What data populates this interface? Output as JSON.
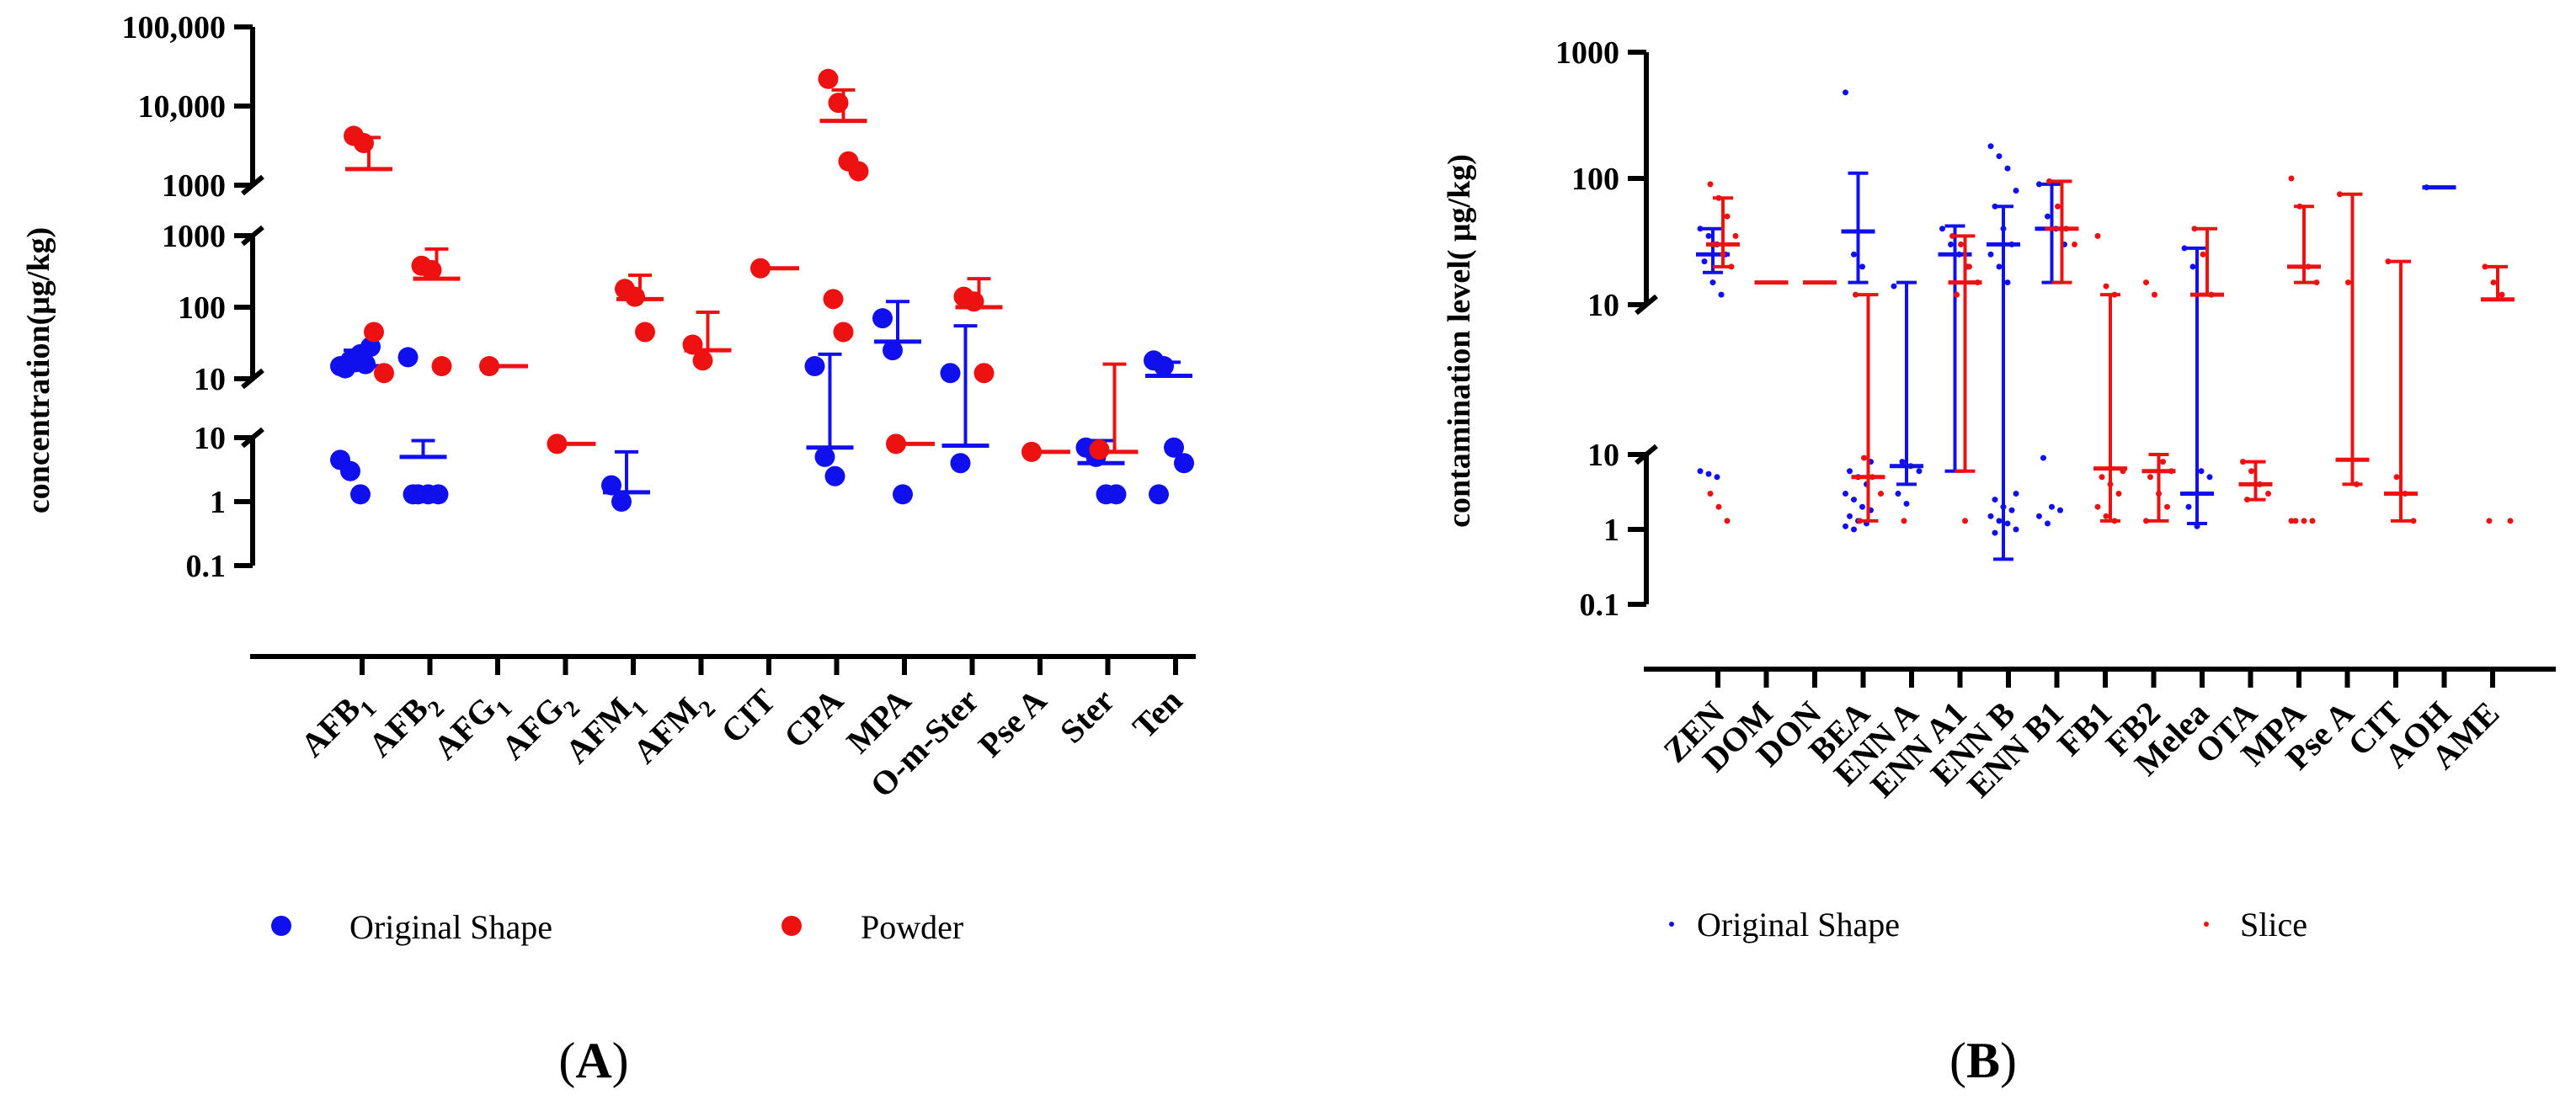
{
  "colors": {
    "original": "#1010ee",
    "second": "#ee1111",
    "axis": "#000000"
  },
  "chart_data": [
    {
      "type": "scatter",
      "panel": "A",
      "ylabel": "concentration(μg/kg)",
      "yscale": "log-broken",
      "segments": [
        {
          "lo": 0.1,
          "hi": 10,
          "ticks": [
            "0.1",
            "1",
            "10"
          ]
        },
        {
          "lo": 10,
          "hi": 1000,
          "ticks": [
            "10",
            "100",
            "1000"
          ]
        },
        {
          "lo": 1000,
          "hi": 100000,
          "ticks": [
            "1000",
            "10,000",
            "100,000"
          ]
        }
      ],
      "categories": [
        {
          "base": "AFB",
          "sub": "1"
        },
        {
          "base": "AFB",
          "sub": "2"
        },
        {
          "base": "AFG",
          "sub": "1"
        },
        {
          "base": "AFG",
          "sub": "2"
        },
        {
          "base": "AFM",
          "sub": "1"
        },
        {
          "base": "AFM",
          "sub": "2"
        },
        {
          "base": "CIT",
          "sub": ""
        },
        {
          "base": "CPA",
          "sub": ""
        },
        {
          "base": "MPA",
          "sub": ""
        },
        {
          "base": "O-m-Ster",
          "sub": ""
        },
        {
          "base": "Pse A",
          "sub": ""
        },
        {
          "base": "Ster",
          "sub": ""
        },
        {
          "base": "Ten",
          "sub": ""
        }
      ],
      "series": [
        {
          "name": "Original Shape",
          "groups": [
            {
              "cat": 0,
              "mean": 15,
              "err": 25,
              "points": [
                15,
                18,
                22,
                28,
                14,
                17,
                16,
                4.5,
                3,
                1.3
              ]
            },
            {
              "cat": 1,
              "mean": 5,
              "err": 9,
              "points": [
                20,
                1.3,
                1.3,
                1.3,
                1.3
              ]
            },
            {
              "cat": 4,
              "mean": 1.4,
              "err": 6,
              "points": [
                1.8,
                1.0
              ]
            },
            {
              "cat": 7,
              "mean": 7,
              "err": 22,
              "points": [
                15,
                5,
                2.5
              ]
            },
            {
              "cat": 8,
              "mean": 33,
              "err": 120,
              "points": [
                70,
                25,
                1.3
              ]
            },
            {
              "cat": 9,
              "mean": 7.5,
              "err": 55,
              "points": [
                12,
                4
              ]
            },
            {
              "cat": 11,
              "mean": 4,
              "err": 9,
              "points": [
                7,
                5,
                1.3,
                1.3
              ]
            },
            {
              "cat": 12,
              "mean": 11,
              "err": 17,
              "points": [
                18,
                15,
                7,
                4,
                1.3
              ]
            }
          ]
        },
        {
          "name": "Powder",
          "groups": [
            {
              "cat": 0,
              "mean": 1600,
              "err": 4000,
              "points": [
                4200,
                3400,
                45,
                12
              ]
            },
            {
              "cat": 1,
              "mean": 250,
              "err": 650,
              "points": [
                380,
                330,
                15
              ]
            },
            {
              "cat": 2,
              "mean": 15,
              "err": null,
              "points": [
                15
              ]
            },
            {
              "cat": 3,
              "mean": 8,
              "err": null,
              "points": [
                8
              ]
            },
            {
              "cat": 4,
              "mean": 130,
              "err": 280,
              "points": [
                180,
                140,
                45
              ]
            },
            {
              "cat": 5,
              "mean": 25,
              "err": 85,
              "points": [
                30,
                18
              ]
            },
            {
              "cat": 6,
              "mean": 350,
              "err": null,
              "points": [
                350
              ]
            },
            {
              "cat": 7,
              "mean": 6500,
              "err": 16000,
              "points": [
                22000,
                11000,
                2000,
                1500,
                130,
                45
              ]
            },
            {
              "cat": 8,
              "mean": 8,
              "err": null,
              "points": [
                8
              ]
            },
            {
              "cat": 9,
              "mean": 100,
              "err": 250,
              "points": [
                140,
                120,
                12
              ]
            },
            {
              "cat": 10,
              "mean": 6,
              "err": null,
              "points": [
                6
              ]
            },
            {
              "cat": 11,
              "mean": 6,
              "err": 16,
              "points": [
                6.5
              ]
            }
          ]
        }
      ],
      "legend": [
        "Original Shape",
        "Powder"
      ]
    },
    {
      "type": "scatter",
      "panel": "B",
      "ylabel": "contamination level( μg/kg)",
      "yscale": "log-broken",
      "segments": [
        {
          "lo": 0.1,
          "hi": 10,
          "ticks": [
            "0.1",
            "1",
            "10"
          ]
        },
        {
          "lo": 10,
          "hi": 1000,
          "ticks": [
            "10",
            "100",
            "1000"
          ]
        }
      ],
      "categories": [
        "ZEN",
        "DOM",
        "DON",
        "BEA",
        "ENN A",
        "ENN A1",
        "ENN B",
        "ENN B1",
        "FB1",
        "FB2",
        "Melea",
        "OTA",
        "MPA",
        "Pse A",
        "CIT",
        "AOH",
        "AME"
      ],
      "series": [
        {
          "name": "Original Shape",
          "groups": [
            {
              "cat": 0,
              "mean": 25,
              "lo": 18,
              "hi": 40,
              "points": [
                40,
                35,
                30,
                25,
                22,
                15,
                12,
                6,
                5.5,
                5
              ]
            },
            {
              "cat": 3,
              "mean": 38,
              "lo": 15,
              "hi": 110,
              "points": [
                480,
                25,
                20,
                8,
                6,
                5,
                4,
                3,
                2.5,
                2,
                1.8,
                1.5,
                1.3,
                1.2,
                1.1,
                1
              ]
            },
            {
              "cat": 4,
              "mean": 7,
              "lo": 4,
              "hi": 15,
              "points": [
                14,
                8,
                7,
                6,
                3,
                2.2
              ]
            },
            {
              "cat": 5,
              "mean": 25,
              "lo": 6,
              "hi": 42,
              "points": [
                40,
                30,
                25,
                20
              ]
            },
            {
              "cat": 6,
              "mean": 30,
              "lo": 0.4,
              "hi": 60,
              "points": [
                180,
                150,
                120,
                80,
                60,
                40,
                30,
                25,
                20,
                15,
                3,
                2.5,
                2,
                1.8,
                1.5,
                1.3,
                1.2,
                1,
                0.9
              ]
            },
            {
              "cat": 7,
              "mean": 40,
              "lo": 15,
              "hi": 90,
              "points": [
                90,
                50,
                40,
                30,
                9,
                2,
                1.8,
                1.5,
                1.2
              ]
            },
            {
              "cat": 10,
              "mean": 3,
              "lo": 1.2,
              "hi": 28,
              "points": [
                28,
                20,
                6,
                5,
                2,
                1.1
              ]
            },
            {
              "cat": 15,
              "mean": 85,
              "lo": 85,
              "hi": 85,
              "points": [
                85
              ]
            }
          ]
        },
        {
          "name": "Slice",
          "groups": [
            {
              "cat": 0,
              "mean": 30,
              "lo": 20,
              "hi": 70,
              "points": [
                90,
                70,
                50,
                35,
                30,
                25,
                20,
                3,
                2,
                1.3
              ]
            },
            {
              "cat": 1,
              "mean": 15,
              "lo": 15,
              "hi": 15,
              "points": []
            },
            {
              "cat": 2,
              "mean": 15,
              "lo": 15,
              "hi": 15,
              "points": []
            },
            {
              "cat": 3,
              "mean": 5,
              "lo": 1.3,
              "hi": 12,
              "points": [
                12,
                9,
                5,
                3,
                1.3
              ]
            },
            {
              "cat": 4,
              "mean": null,
              "lo": null,
              "hi": null,
              "points": [
                1.3
              ]
            },
            {
              "cat": 5,
              "mean": 15,
              "lo": 6,
              "hi": 35,
              "points": [
                35,
                30,
                20,
                15,
                12,
                1.3
              ]
            },
            {
              "cat": 7,
              "mean": 40,
              "lo": 15,
              "hi": 95,
              "points": [
                95,
                60,
                40,
                30
              ]
            },
            {
              "cat": 8,
              "mean": 6.5,
              "lo": 1.3,
              "hi": 12,
              "points": [
                35,
                14,
                12,
                6,
                5,
                4,
                3,
                2,
                1.5,
                1.3
              ]
            },
            {
              "cat": 9,
              "mean": 6,
              "lo": 1.3,
              "hi": 10,
              "points": [
                15,
                12,
                8,
                6,
                5,
                3,
                2,
                1.3
              ]
            },
            {
              "cat": 10,
              "mean": 12,
              "lo": 12,
              "hi": 40,
              "points": [
                40,
                25,
                12
              ]
            },
            {
              "cat": 11,
              "mean": 4,
              "lo": 2.5,
              "hi": 8,
              "points": [
                8,
                6,
                4,
                3,
                2.5
              ]
            },
            {
              "cat": 12,
              "mean": 20,
              "lo": 15,
              "hi": 60,
              "points": [
                100,
                60,
                20,
                15,
                1.3,
                1.3,
                1.3,
                1.3
              ]
            },
            {
              "cat": 13,
              "mean": 8.5,
              "lo": 4,
              "hi": 75,
              "points": [
                75,
                15,
                4
              ]
            },
            {
              "cat": 14,
              "mean": 3,
              "lo": 1.3,
              "hi": 22,
              "points": [
                22,
                5,
                3,
                1.3
              ]
            },
            {
              "cat": 16,
              "mean": 11,
              "lo": 11,
              "hi": 20,
              "points": [
                20,
                15,
                12,
                1.3,
                1.3
              ]
            }
          ]
        }
      ],
      "legend": [
        "Original Shape",
        "Slice"
      ]
    }
  ],
  "panel_labels": [
    "A",
    "B"
  ]
}
